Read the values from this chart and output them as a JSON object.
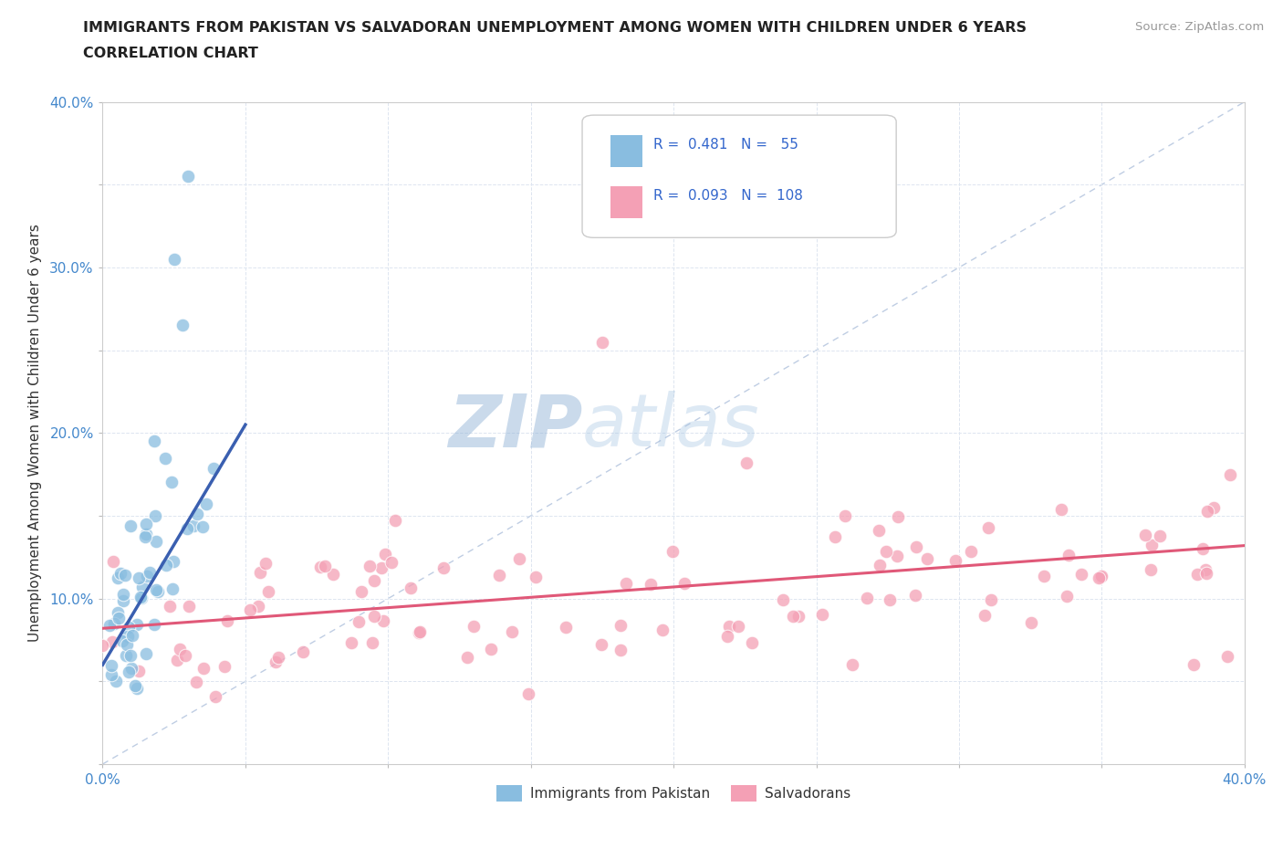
{
  "title_line1": "IMMIGRANTS FROM PAKISTAN VS SALVADORAN UNEMPLOYMENT AMONG WOMEN WITH CHILDREN UNDER 6 YEARS",
  "title_line2": "CORRELATION CHART",
  "source": "Source: ZipAtlas.com",
  "ylabel": "Unemployment Among Women with Children Under 6 years",
  "xlim": [
    0.0,
    0.4
  ],
  "ylim": [
    0.0,
    0.4
  ],
  "color_pakistan": "#89bde0",
  "color_salvadoran": "#f4a0b5",
  "color_line_pakistan": "#3a5fb0",
  "color_line_salvadoran": "#e05878",
  "color_diag": "#b8c8e0",
  "watermark_zip": "ZIP",
  "watermark_atlas": "atlas",
  "pak_line_x0": 0.0,
  "pak_line_y0": 0.06,
  "pak_line_x1": 0.05,
  "pak_line_y1": 0.205,
  "sal_line_x0": 0.0,
  "sal_line_y0": 0.082,
  "sal_line_x1": 0.4,
  "sal_line_y1": 0.132
}
